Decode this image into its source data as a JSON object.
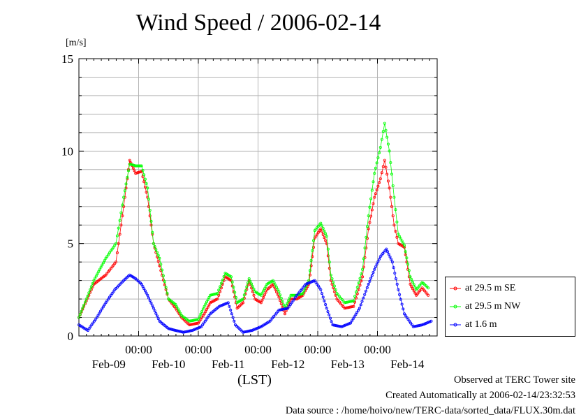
{
  "title": "Wind Speed / 2006-02-14",
  "unit_label": "[m/s]",
  "x_axis_label": "(LST)",
  "legend": [
    {
      "label": "at 29.5 m SE",
      "color": "#ff0000"
    },
    {
      "label": "at 29.5 m NW",
      "color": "#00ff00"
    },
    {
      "label": "at 1.6 m",
      "color": "#0000ff"
    }
  ],
  "footer": {
    "line1": "Observed at TERC Tower site",
    "line2": "Created Automatically at 2006-02-14/23:32:53",
    "line3": "Data source : /home/hoivo/new/TERC-data/sorted_data/FLUX.30m.dat"
  },
  "chart_data": {
    "type": "line",
    "title": "Wind Speed / 2006-02-14",
    "ylabel": "[m/s]",
    "xlabel": "(LST)",
    "ylim": [
      0,
      15
    ],
    "xlim": [
      0,
      6
    ],
    "yticks": [
      0,
      5,
      10,
      15
    ],
    "xtick_time_labels": [
      "00:00",
      "00:00",
      "00:00",
      "00:00",
      "00:00"
    ],
    "xtick_date_labels": [
      "Feb-09",
      "Feb-10",
      "Feb-11",
      "Feb-12",
      "Feb-13",
      "Feb-14"
    ],
    "x_unit": "days since 2006-02-09 00:00 (approx.)",
    "grid": true,
    "legend_position": "right",
    "series": [
      {
        "name": "at 29.5 m SE",
        "color": "#ff0000",
        "points": [
          [
            0.0,
            1.0
          ],
          [
            0.25,
            2.8
          ],
          [
            0.45,
            3.3
          ],
          [
            0.62,
            4.0
          ],
          [
            0.75,
            7.0
          ],
          [
            0.85,
            9.5
          ],
          [
            0.95,
            8.8
          ],
          [
            1.05,
            8.9
          ],
          [
            1.15,
            7.5
          ],
          [
            1.25,
            5.0
          ],
          [
            1.35,
            3.8
          ],
          [
            1.5,
            2.0
          ],
          [
            1.62,
            1.5
          ],
          [
            1.72,
            1.0
          ],
          [
            1.85,
            0.6
          ],
          [
            2.0,
            0.7
          ],
          [
            2.1,
            1.2
          ],
          [
            2.2,
            1.8
          ],
          [
            2.32,
            2.0
          ],
          [
            2.45,
            3.2
          ],
          [
            2.55,
            3.0
          ],
          [
            2.65,
            1.5
          ],
          [
            2.75,
            1.8
          ],
          [
            2.85,
            3.0
          ],
          [
            2.95,
            2.0
          ],
          [
            3.05,
            1.8
          ],
          [
            3.15,
            2.5
          ],
          [
            3.25,
            2.8
          ],
          [
            3.35,
            2.1
          ],
          [
            3.45,
            1.2
          ],
          [
            3.55,
            2.0
          ],
          [
            3.65,
            2.0
          ],
          [
            3.75,
            2.2
          ],
          [
            3.85,
            2.8
          ],
          [
            3.95,
            5.3
          ],
          [
            4.05,
            5.8
          ],
          [
            4.15,
            5.0
          ],
          [
            4.22,
            3.0
          ],
          [
            4.32,
            2.0
          ],
          [
            4.45,
            1.5
          ],
          [
            4.6,
            1.6
          ],
          [
            4.75,
            3.2
          ],
          [
            4.85,
            5.8
          ],
          [
            4.95,
            7.5
          ],
          [
            5.05,
            8.5
          ],
          [
            5.12,
            9.5
          ],
          [
            5.2,
            8.0
          ],
          [
            5.28,
            6.0
          ],
          [
            5.35,
            5.0
          ],
          [
            5.45,
            4.8
          ],
          [
            5.55,
            2.8
          ],
          [
            5.65,
            2.2
          ],
          [
            5.75,
            2.6
          ],
          [
            5.85,
            2.2
          ]
        ]
      },
      {
        "name": "at 29.5 m NW",
        "color": "#00ff00",
        "points": [
          [
            0.0,
            1.0
          ],
          [
            0.25,
            3.0
          ],
          [
            0.45,
            4.2
          ],
          [
            0.62,
            5.0
          ],
          [
            0.75,
            7.5
          ],
          [
            0.85,
            9.3
          ],
          [
            0.95,
            9.2
          ],
          [
            1.05,
            9.2
          ],
          [
            1.15,
            8.0
          ],
          [
            1.25,
            5.0
          ],
          [
            1.35,
            4.2
          ],
          [
            1.5,
            2.0
          ],
          [
            1.62,
            1.7
          ],
          [
            1.72,
            1.1
          ],
          [
            1.85,
            0.8
          ],
          [
            2.0,
            0.9
          ],
          [
            2.1,
            1.6
          ],
          [
            2.2,
            2.2
          ],
          [
            2.32,
            2.3
          ],
          [
            2.45,
            3.4
          ],
          [
            2.55,
            3.2
          ],
          [
            2.65,
            1.8
          ],
          [
            2.75,
            2.0
          ],
          [
            2.85,
            3.1
          ],
          [
            2.95,
            2.4
          ],
          [
            3.05,
            2.2
          ],
          [
            3.15,
            2.8
          ],
          [
            3.25,
            3.0
          ],
          [
            3.35,
            2.4
          ],
          [
            3.45,
            1.5
          ],
          [
            3.55,
            2.2
          ],
          [
            3.65,
            2.2
          ],
          [
            3.75,
            2.3
          ],
          [
            3.85,
            3.0
          ],
          [
            3.95,
            5.7
          ],
          [
            4.05,
            6.1
          ],
          [
            4.15,
            5.4
          ],
          [
            4.22,
            3.3
          ],
          [
            4.32,
            2.3
          ],
          [
            4.45,
            1.8
          ],
          [
            4.6,
            1.9
          ],
          [
            4.75,
            3.6
          ],
          [
            4.85,
            6.5
          ],
          [
            4.95,
            8.8
          ],
          [
            5.05,
            10.2
          ],
          [
            5.12,
            11.5
          ],
          [
            5.2,
            10.0
          ],
          [
            5.28,
            7.5
          ],
          [
            5.35,
            5.5
          ],
          [
            5.45,
            4.9
          ],
          [
            5.55,
            3.2
          ],
          [
            5.65,
            2.5
          ],
          [
            5.75,
            2.9
          ],
          [
            5.85,
            2.6
          ]
        ]
      },
      {
        "name": "at 1.6 m",
        "color": "#0000ff",
        "points": [
          [
            0.0,
            0.6
          ],
          [
            0.15,
            0.3
          ],
          [
            0.3,
            1.0
          ],
          [
            0.45,
            1.8
          ],
          [
            0.6,
            2.5
          ],
          [
            0.75,
            3.0
          ],
          [
            0.85,
            3.3
          ],
          [
            0.95,
            3.1
          ],
          [
            1.05,
            2.8
          ],
          [
            1.15,
            2.2
          ],
          [
            1.25,
            1.5
          ],
          [
            1.35,
            0.8
          ],
          [
            1.5,
            0.4
          ],
          [
            1.62,
            0.3
          ],
          [
            1.75,
            0.2
          ],
          [
            1.9,
            0.3
          ],
          [
            2.05,
            0.5
          ],
          [
            2.2,
            1.2
          ],
          [
            2.35,
            1.6
          ],
          [
            2.5,
            1.8
          ],
          [
            2.62,
            0.6
          ],
          [
            2.75,
            0.2
          ],
          [
            2.9,
            0.3
          ],
          [
            3.05,
            0.5
          ],
          [
            3.2,
            0.8
          ],
          [
            3.35,
            1.4
          ],
          [
            3.5,
            1.5
          ],
          [
            3.65,
            2.2
          ],
          [
            3.8,
            2.8
          ],
          [
            3.95,
            3.0
          ],
          [
            4.05,
            2.5
          ],
          [
            4.15,
            1.5
          ],
          [
            4.25,
            0.6
          ],
          [
            4.4,
            0.5
          ],
          [
            4.55,
            0.7
          ],
          [
            4.7,
            1.5
          ],
          [
            4.85,
            2.8
          ],
          [
            4.95,
            3.6
          ],
          [
            5.05,
            4.3
          ],
          [
            5.15,
            4.7
          ],
          [
            5.25,
            4.0
          ],
          [
            5.35,
            2.5
          ],
          [
            5.45,
            1.2
          ],
          [
            5.6,
            0.5
          ],
          [
            5.75,
            0.6
          ],
          [
            5.9,
            0.8
          ]
        ]
      }
    ]
  }
}
